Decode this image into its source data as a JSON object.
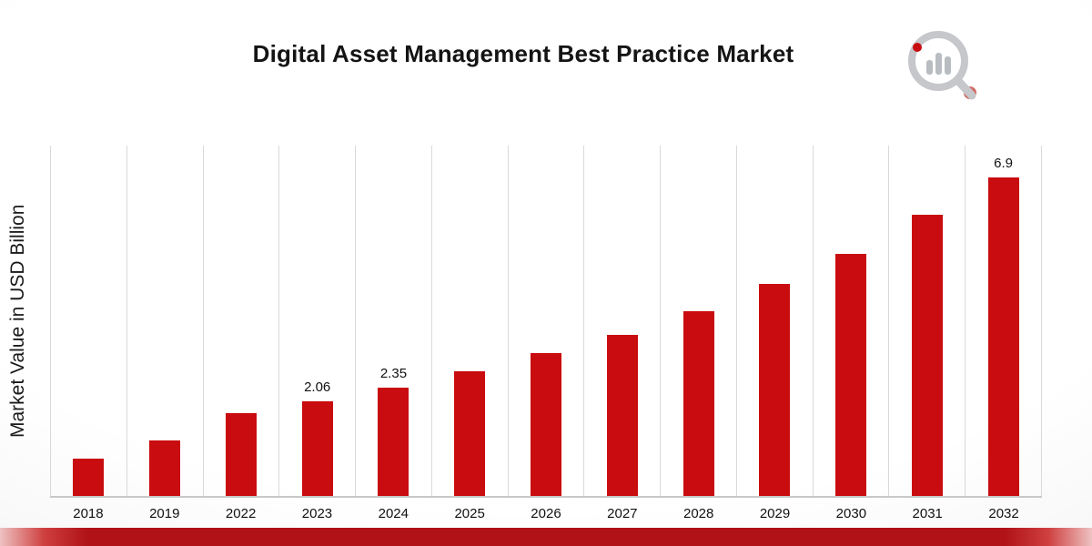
{
  "chart_data": {
    "type": "bar",
    "title": "Digital Asset Management Best Practice Market",
    "ylabel": "Market Value in USD Billion",
    "xlabel": "",
    "categories": [
      "2018",
      "2019",
      "2022",
      "2023",
      "2024",
      "2025",
      "2026",
      "2027",
      "2028",
      "2029",
      "2030",
      "2031",
      "2032"
    ],
    "values": [
      0.8,
      1.2,
      1.8,
      2.06,
      2.35,
      2.7,
      3.1,
      3.5,
      4.0,
      4.6,
      5.25,
      6.1,
      6.9
    ],
    "data_labels": {
      "2023": "2.06",
      "2024": "2.35",
      "2032": "6.9"
    },
    "bar_color": "#c90c0f",
    "ylim": [
      0,
      7.6
    ],
    "grid": "vertical",
    "legend": "none"
  },
  "branding": {
    "logo": "market-research-chart-magnifier-logo",
    "accent_red": "#c90c0f",
    "logo_gray": "#c5c7ca"
  }
}
